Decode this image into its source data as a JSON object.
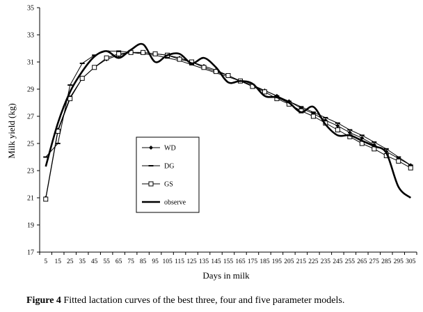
{
  "chart_data": {
    "type": "line",
    "xlabel": "Days in milk",
    "ylabel": "Milk yield (kg)",
    "ylim": [
      17,
      35
    ],
    "yticks": [
      17,
      19,
      21,
      23,
      25,
      27,
      29,
      31,
      33,
      35
    ],
    "x": [
      5,
      15,
      25,
      35,
      45,
      55,
      65,
      75,
      85,
      95,
      105,
      115,
      125,
      135,
      145,
      155,
      165,
      175,
      185,
      195,
      205,
      215,
      225,
      235,
      245,
      255,
      265,
      275,
      285,
      295,
      305
    ],
    "legend_position": "left-center",
    "series": [
      {
        "name": "WD",
        "marker": "diamond",
        "values": [
          21.0,
          26.0,
          28.4,
          29.8,
          30.6,
          31.2,
          31.5,
          31.7,
          31.7,
          31.6,
          31.5,
          31.3,
          31.0,
          30.7,
          30.4,
          30.0,
          29.6,
          29.3,
          28.9,
          28.5,
          28.1,
          27.6,
          27.2,
          26.7,
          26.3,
          25.8,
          25.4,
          24.9,
          24.4,
          23.9,
          23.4
        ]
      },
      {
        "name": "DG",
        "marker": "dash",
        "values": [
          24.0,
          25.0,
          29.3,
          30.9,
          31.5,
          31.8,
          31.8,
          31.7,
          31.6,
          31.5,
          31.3,
          31.1,
          30.8,
          30.5,
          30.2,
          29.9,
          29.6,
          29.2,
          28.9,
          28.5,
          28.1,
          27.7,
          27.3,
          26.9,
          26.5,
          26.0,
          25.6,
          25.1,
          24.6,
          24.0,
          23.4
        ]
      },
      {
        "name": "GS",
        "marker": "square",
        "values": [
          20.9,
          25.9,
          28.3,
          29.8,
          30.6,
          31.3,
          31.6,
          31.7,
          31.7,
          31.6,
          31.5,
          31.2,
          31.0,
          30.6,
          30.3,
          30.0,
          29.6,
          29.2,
          28.8,
          28.3,
          27.9,
          27.4,
          27.0,
          26.5,
          26.0,
          25.5,
          25.0,
          24.6,
          24.1,
          23.7,
          23.2
        ]
      },
      {
        "name": "observe",
        "marker": "none",
        "values": [
          23.3,
          26.5,
          28.8,
          30.3,
          31.4,
          31.8,
          31.3,
          31.9,
          32.3,
          31.0,
          31.5,
          31.6,
          30.9,
          31.3,
          30.6,
          29.5,
          29.6,
          29.4,
          28.5,
          28.4,
          28.0,
          27.3,
          27.7,
          26.4,
          25.6,
          25.6,
          25.2,
          24.8,
          24.3,
          21.8,
          21.0
        ]
      }
    ]
  },
  "caption": {
    "label": "Figure 4",
    "text": " Fitted lactation curves of the best three, four and five parameter models."
  }
}
